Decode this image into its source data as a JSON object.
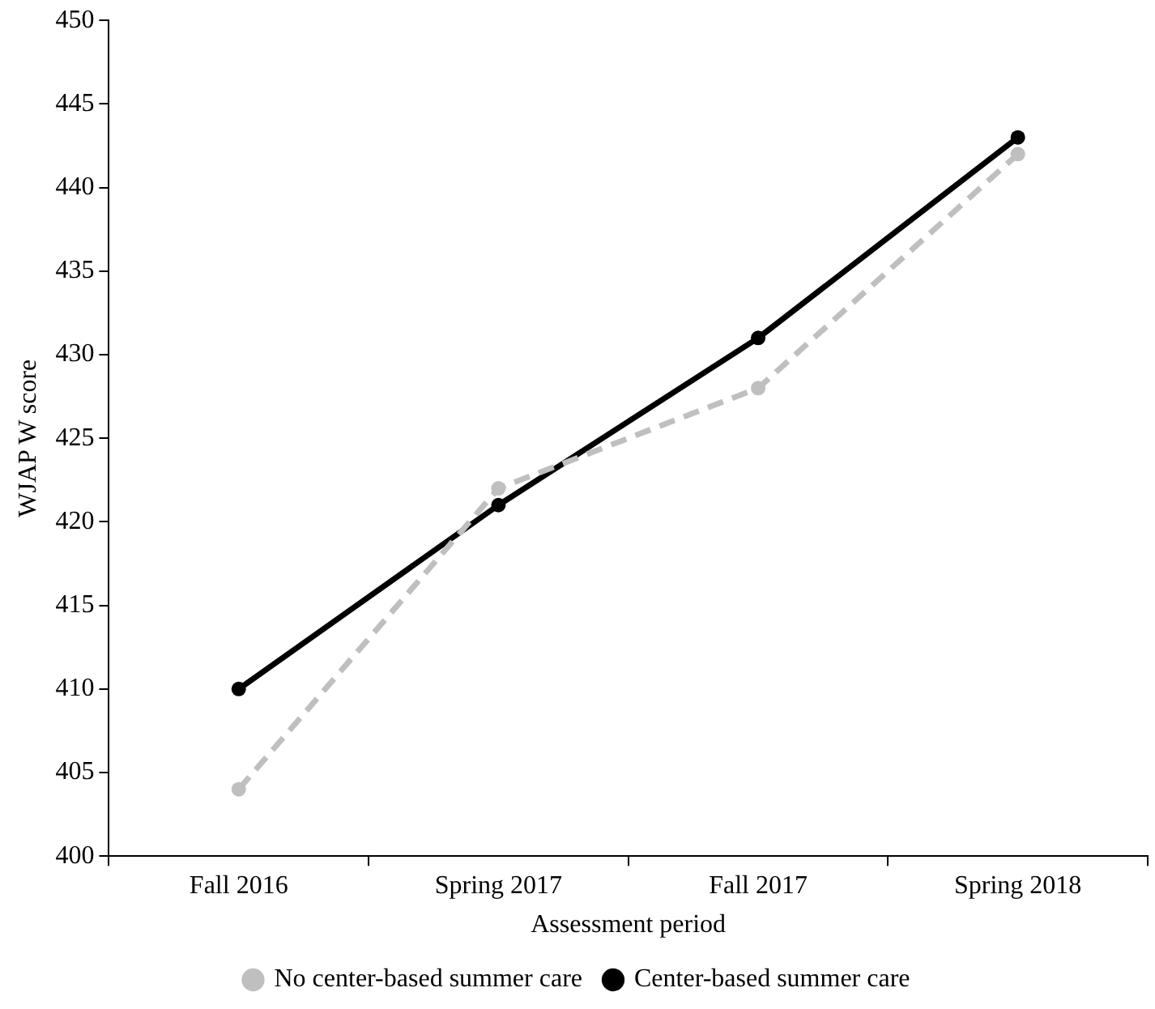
{
  "chart_data": {
    "type": "line",
    "xlabel": "Assessment period",
    "ylabel": "WJAP W score",
    "categories": [
      "Fall 2016",
      "Spring 2017",
      "Fall 2017",
      "Spring 2018"
    ],
    "series": [
      {
        "name": "No center-based summer care",
        "color": "#bfbfbf",
        "values": [
          404,
          422,
          428,
          442
        ],
        "line_style": "dashed"
      },
      {
        "name": "Center-based summer care",
        "color": "#000000",
        "values": [
          410,
          421,
          431,
          443
        ],
        "line_style": "solid"
      }
    ],
    "ylim": [
      400,
      450
    ],
    "yticks": [
      400,
      405,
      410,
      415,
      420,
      425,
      430,
      435,
      440,
      445,
      450
    ],
    "grid": false,
    "legend": "bottom",
    "marker": "circle"
  }
}
